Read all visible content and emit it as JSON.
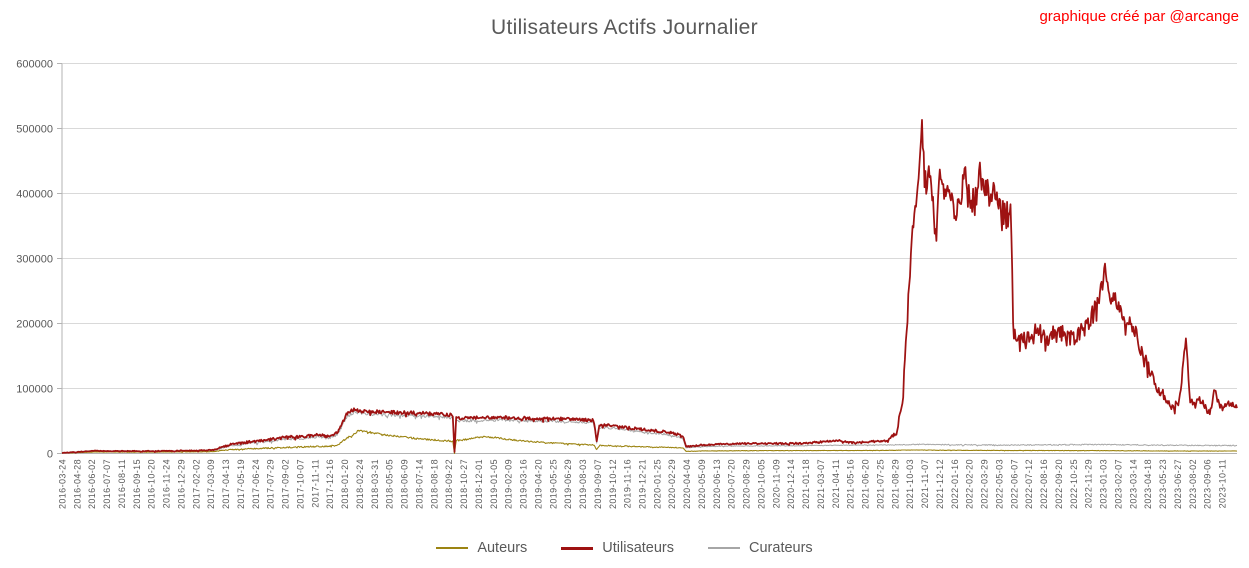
{
  "header": {
    "title": "Utilisateurs Actifs Journalier",
    "watermark": "graphique créé par @arcange"
  },
  "chart_data": {
    "type": "line",
    "title": "Utilisateurs Actifs Journalier",
    "xlabel": "",
    "ylabel": "",
    "x_axis": {
      "unit": "date",
      "first": "2016-03-24",
      "last": "2023-10-11",
      "label_rotation_deg": 90,
      "tick_labels": [
        "2016-03-24",
        "2016-04-28",
        "2016-06-02",
        "2016-07-07",
        "2016-08-11",
        "2016-09-15",
        "2016-10-20",
        "2016-11-24",
        "2016-12-29",
        "2017-02-02",
        "2017-03-09",
        "2017-04-13",
        "2017-05-19",
        "2017-06-24",
        "2017-07-29",
        "2017-09-02",
        "2017-10-07",
        "2017-11-11",
        "2017-12-16",
        "2018-01-20",
        "2018-02-24",
        "2018-03-31",
        "2018-05-05",
        "2018-06-09",
        "2018-07-14",
        "2018-08-18",
        "2018-09-22",
        "2018-10-27",
        "2018-12-01",
        "2019-01-05",
        "2019-02-09",
        "2019-03-16",
        "2019-04-20",
        "2019-05-25",
        "2019-06-29",
        "2019-08-03",
        "2019-09-07",
        "2019-10-12",
        "2019-11-16",
        "2019-12-21",
        "2020-01-25",
        "2020-02-29",
        "2020-04-04",
        "2020-05-09",
        "2020-06-13",
        "2020-07-20",
        "2020-08-29",
        "2020-10-05",
        "2020-11-09",
        "2020-12-14",
        "2021-01-18",
        "2021-03-07",
        "2021-04-11",
        "2021-05-16",
        "2021-06-20",
        "2021-07-25",
        "2021-08-29",
        "2021-10-03",
        "2021-11-07",
        "2021-12-12",
        "2022-01-16",
        "2022-02-20",
        "2022-03-29",
        "2022-05-03",
        "2022-06-07",
        "2022-07-12",
        "2022-08-16",
        "2022-09-20",
        "2022-10-25",
        "2022-11-29",
        "2023-01-03",
        "2023-02-07",
        "2023-03-14",
        "2023-04-18",
        "2023-05-23",
        "2023-06-27",
        "2023-08-02",
        "2023-09-06",
        "2023-10-11"
      ]
    },
    "y_axis": {
      "range": [
        0,
        600000
      ],
      "ticks": [
        0,
        100000,
        200000,
        300000,
        400000,
        500000,
        600000
      ],
      "grid": true
    },
    "legend": {
      "position": "bottom"
    },
    "style": {
      "grid_color": "#d9d9d9",
      "axis_color": "#b3b3b3",
      "label_color": "#595959",
      "background": "#ffffff"
    },
    "series": [
      {
        "name": "Auteurs",
        "color": "#9c8412",
        "width": 1.1,
        "z": 1,
        "seed": 101,
        "anchors": [
          [
            0.0,
            700
          ],
          [
            0.03,
            2400
          ],
          [
            0.075,
            2100
          ],
          [
            0.128,
            2900
          ],
          [
            0.143,
            6000
          ],
          [
            0.158,
            7200
          ],
          [
            0.175,
            8300
          ],
          [
            0.19,
            9300
          ],
          [
            0.205,
            10000
          ],
          [
            0.217,
            11000
          ],
          [
            0.227,
            10400
          ],
          [
            0.235,
            13500
          ],
          [
            0.2425,
            24000
          ],
          [
            0.249,
            30500
          ],
          [
            0.2525,
            35500
          ],
          [
            0.257,
            34000
          ],
          [
            0.262,
            32500
          ],
          [
            0.272,
            29000
          ],
          [
            0.283,
            27000
          ],
          [
            0.295,
            24500
          ],
          [
            0.301,
            23000
          ],
          [
            0.312,
            21500
          ],
          [
            0.322,
            20000
          ],
          [
            0.3325,
            19500
          ],
          [
            0.334,
            800
          ],
          [
            0.3355,
            20000
          ],
          [
            0.342,
            21000
          ],
          [
            0.356,
            25500
          ],
          [
            0.368,
            24800
          ],
          [
            0.38,
            21500
          ],
          [
            0.398,
            18500
          ],
          [
            0.42,
            16000
          ],
          [
            0.44,
            14000
          ],
          [
            0.4525,
            13000
          ],
          [
            0.455,
            5500
          ],
          [
            0.4575,
            12500
          ],
          [
            0.475,
            11500
          ],
          [
            0.492,
            10500
          ],
          [
            0.513,
            9500
          ],
          [
            0.5285,
            8800
          ],
          [
            0.531,
            3300
          ],
          [
            0.545,
            3900
          ],
          [
            0.58,
            4300
          ],
          [
            0.63,
            4500
          ],
          [
            0.7,
            4800
          ],
          [
            0.726,
            5400
          ],
          [
            0.75,
            5000
          ],
          [
            0.81,
            4600
          ],
          [
            0.88,
            4500
          ],
          [
            0.93,
            4000
          ],
          [
            0.96,
            3800
          ],
          [
            1.0,
            3800
          ]
        ],
        "noise": [
          [
            0.0,
            250
          ],
          [
            0.128,
            450
          ],
          [
            0.145,
            800
          ],
          [
            0.25,
            1500
          ],
          [
            0.334,
            1300
          ],
          [
            0.45,
            900
          ],
          [
            0.52,
            700
          ],
          [
            0.531,
            300
          ],
          [
            1.0,
            300
          ]
        ]
      },
      {
        "name": "Utilisateurs",
        "color": "#9e1212",
        "width": 1.75,
        "z": 2,
        "seed": 202,
        "anchors": [
          [
            0.0,
            1200
          ],
          [
            0.01,
            2000
          ],
          [
            0.03,
            4200
          ],
          [
            0.045,
            3600
          ],
          [
            0.075,
            3600
          ],
          [
            0.105,
            4300
          ],
          [
            0.128,
            5200
          ],
          [
            0.143,
            13500
          ],
          [
            0.158,
            17500
          ],
          [
            0.175,
            21000
          ],
          [
            0.19,
            25000
          ],
          [
            0.205,
            26000
          ],
          [
            0.217,
            29000
          ],
          [
            0.227,
            26500
          ],
          [
            0.235,
            34000
          ],
          [
            0.2425,
            62000
          ],
          [
            0.249,
            68000
          ],
          [
            0.254,
            65000
          ],
          [
            0.262,
            64500
          ],
          [
            0.285,
            63000
          ],
          [
            0.305,
            62000
          ],
          [
            0.325,
            60000
          ],
          [
            0.3325,
            59000
          ],
          [
            0.334,
            2500
          ],
          [
            0.3355,
            54000
          ],
          [
            0.345,
            54500
          ],
          [
            0.373,
            55500
          ],
          [
            0.407,
            54000
          ],
          [
            0.44,
            52500
          ],
          [
            0.4525,
            51000
          ],
          [
            0.455,
            20000
          ],
          [
            0.4575,
            44000
          ],
          [
            0.47,
            42500
          ],
          [
            0.492,
            37500
          ],
          [
            0.513,
            33500
          ],
          [
            0.524,
            29500
          ],
          [
            0.5285,
            27000
          ],
          [
            0.531,
            10500
          ],
          [
            0.545,
            13000
          ],
          [
            0.565,
            15000
          ],
          [
            0.6,
            15500
          ],
          [
            0.628,
            15500
          ],
          [
            0.648,
            18000
          ],
          [
            0.6615,
            20500
          ],
          [
            0.672,
            16500
          ],
          [
            0.69,
            18500
          ],
          [
            0.703,
            20000
          ],
          [
            0.71,
            30000
          ],
          [
            0.7155,
            80000
          ],
          [
            0.7185,
            180000
          ],
          [
            0.721,
            258000
          ],
          [
            0.7235,
            335000
          ],
          [
            0.726,
            375000
          ],
          [
            0.7285,
            420000
          ],
          [
            0.7315,
            513000
          ],
          [
            0.734,
            428000
          ],
          [
            0.737,
            410000
          ],
          [
            0.739,
            450000
          ],
          [
            0.7415,
            390000
          ],
          [
            0.744,
            318000
          ],
          [
            0.747,
            428000
          ],
          [
            0.751,
            398000
          ],
          [
            0.755,
            412000
          ],
          [
            0.76,
            372000
          ],
          [
            0.764,
            390000
          ],
          [
            0.768,
            428000
          ],
          [
            0.773,
            403000
          ],
          [
            0.777,
            382000
          ],
          [
            0.781,
            432000
          ],
          [
            0.786,
            418000
          ],
          [
            0.79,
            398000
          ],
          [
            0.794,
            412000
          ],
          [
            0.798,
            382000
          ],
          [
            0.803,
            368000
          ],
          [
            0.8075,
            378000
          ],
          [
            0.8095,
            200000
          ],
          [
            0.812,
            172000
          ],
          [
            0.82,
            178000
          ],
          [
            0.832,
            188000
          ],
          [
            0.841,
            176000
          ],
          [
            0.849,
            190000
          ],
          [
            0.858,
            174000
          ],
          [
            0.866,
            186000
          ],
          [
            0.875,
            205000
          ],
          [
            0.879,
            220000
          ],
          [
            0.8835,
            243000
          ],
          [
            0.888,
            282000
          ],
          [
            0.892,
            235000
          ],
          [
            0.896,
            242000
          ],
          [
            0.901,
            220000
          ],
          [
            0.905,
            198000
          ],
          [
            0.909,
            208000
          ],
          [
            0.913,
            190000
          ],
          [
            0.917,
            166000
          ],
          [
            0.922,
            144000
          ],
          [
            0.926,
            128000
          ],
          [
            0.93,
            106000
          ],
          [
            0.934,
            97000
          ],
          [
            0.939,
            86000
          ],
          [
            0.943,
            79000
          ],
          [
            0.947,
            74000
          ],
          [
            0.951,
            82000
          ],
          [
            0.9565,
            178000
          ],
          [
            0.96,
            82000
          ],
          [
            0.964,
            74000
          ],
          [
            0.968,
            85000
          ],
          [
            0.973,
            70000
          ],
          [
            0.977,
            64000
          ],
          [
            0.981,
            97000
          ],
          [
            0.985,
            74000
          ],
          [
            0.989,
            70000
          ],
          [
            0.994,
            77000
          ],
          [
            1.0,
            71000
          ]
        ],
        "noise": [
          [
            0.0,
            500
          ],
          [
            0.128,
            800
          ],
          [
            0.145,
            1800
          ],
          [
            0.235,
            2500
          ],
          [
            0.25,
            2800
          ],
          [
            0.334,
            2600
          ],
          [
            0.4,
            2400
          ],
          [
            0.52,
            2000
          ],
          [
            0.531,
            1100
          ],
          [
            0.7,
            1600
          ],
          [
            0.712,
            5000
          ],
          [
            0.727,
            18000
          ],
          [
            0.7315,
            26000
          ],
          [
            0.806,
            25000
          ],
          [
            0.8095,
            18000
          ],
          [
            0.812,
            19000
          ],
          [
            0.88,
            15000
          ],
          [
            0.89,
            13000
          ],
          [
            0.935,
            8000
          ],
          [
            0.951,
            6000
          ],
          [
            1.0,
            5000
          ]
        ]
      },
      {
        "name": "Curateurs",
        "color": "#a6a6a6",
        "width": 1.0,
        "z": 0,
        "seed": 303,
        "anchors": [
          [
            0.0,
            1000
          ],
          [
            0.03,
            3200
          ],
          [
            0.075,
            2900
          ],
          [
            0.128,
            4200
          ],
          [
            0.143,
            11500
          ],
          [
            0.158,
            15000
          ],
          [
            0.175,
            18500
          ],
          [
            0.19,
            22000
          ],
          [
            0.205,
            23000
          ],
          [
            0.217,
            26000
          ],
          [
            0.227,
            23500
          ],
          [
            0.235,
            30500
          ],
          [
            0.2425,
            57500
          ],
          [
            0.249,
            63500
          ],
          [
            0.262,
            60500
          ],
          [
            0.285,
            59000
          ],
          [
            0.305,
            58000
          ],
          [
            0.325,
            56000
          ],
          [
            0.3325,
            55000
          ],
          [
            0.334,
            1500
          ],
          [
            0.3355,
            50000
          ],
          [
            0.345,
            50500
          ],
          [
            0.373,
            51500
          ],
          [
            0.407,
            50000
          ],
          [
            0.44,
            48500
          ],
          [
            0.4525,
            47000
          ],
          [
            0.455,
            17000
          ],
          [
            0.4575,
            40500
          ],
          [
            0.47,
            38500
          ],
          [
            0.492,
            33500
          ],
          [
            0.513,
            30000
          ],
          [
            0.524,
            26000
          ],
          [
            0.5285,
            23500
          ],
          [
            0.531,
            9000
          ],
          [
            0.545,
            10500
          ],
          [
            0.565,
            11500
          ],
          [
            0.628,
            12000
          ],
          [
            0.6615,
            12800
          ],
          [
            0.703,
            13200
          ],
          [
            0.732,
            14000
          ],
          [
            0.78,
            13200
          ],
          [
            0.8095,
            13000
          ],
          [
            0.8835,
            13800
          ],
          [
            0.9565,
            12500
          ],
          [
            1.0,
            12200
          ]
        ],
        "noise": [
          [
            0.0,
            350
          ],
          [
            0.128,
            600
          ],
          [
            0.145,
            1400
          ],
          [
            0.25,
            2200
          ],
          [
            0.334,
            2200
          ],
          [
            0.52,
            1600
          ],
          [
            0.531,
            600
          ],
          [
            0.7,
            500
          ],
          [
            0.732,
            900
          ],
          [
            1.0,
            700
          ]
        ]
      }
    ]
  }
}
